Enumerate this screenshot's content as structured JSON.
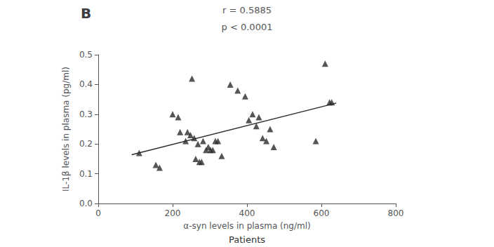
{
  "chart_data": {
    "type": "scatter",
    "title": "B",
    "annotations": [
      "r = 0.5885",
      "p < 0.0001"
    ],
    "footer": "Patients",
    "xlabel": "α-syn levels in plasma (ng/ml)",
    "ylabel": "IL-1β levels in plasma (pg/ml)",
    "xlim": [
      0,
      800
    ],
    "ylim": [
      0.0,
      0.5
    ],
    "xticks": [
      0,
      200,
      400,
      600,
      800
    ],
    "yticks": [
      {
        "value": 0.0,
        "label": "0.0"
      },
      0.1,
      0.2,
      0.3,
      0.4,
      0.5
    ],
    "grid": false,
    "series": [
      {
        "type": "scatter",
        "marker": "triangle",
        "color": "#2b2b2b",
        "x": [
          110,
          155,
          165,
          200,
          215,
          220,
          235,
          240,
          248,
          252,
          258,
          262,
          268,
          272,
          278,
          282,
          290,
          296,
          302,
          308,
          315,
          322,
          332,
          355,
          375,
          395,
          405,
          415,
          425,
          432,
          442,
          452,
          462,
          472,
          585,
          610,
          622,
          628
        ],
        "values": [
          0.17,
          0.13,
          0.12,
          0.3,
          0.29,
          0.24,
          0.21,
          0.24,
          0.23,
          0.42,
          0.22,
          0.15,
          0.2,
          0.14,
          0.14,
          0.21,
          0.18,
          0.19,
          0.18,
          0.18,
          0.21,
          0.21,
          0.16,
          0.4,
          0.38,
          0.36,
          0.28,
          0.3,
          0.26,
          0.29,
          0.22,
          0.21,
          0.25,
          0.19,
          0.21,
          0.47,
          0.34,
          0.34
        ]
      },
      {
        "type": "line",
        "line_style": "solid",
        "color": "#2b2b2b",
        "x": [
          90,
          640
        ],
        "values": [
          0.1638,
          0.3376
        ]
      }
    ]
  }
}
